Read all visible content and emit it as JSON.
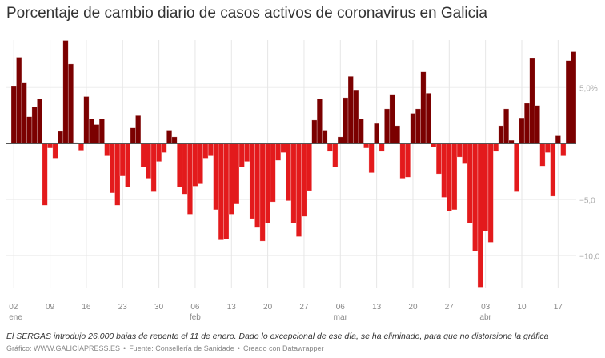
{
  "title": "Porcentaje de cambio diario de casos activos de coronavirus en Galicia",
  "note": "El SERGAS introdujo 26.000 bajas de repente el 11 de enero. Dado lo excepcional de ese día, se ha eliminado, para que no distorsione la gráfica",
  "source": {
    "credit": "Gráfico: WWW.GALICIAPRESS.ES",
    "separator": "•",
    "fuente": "Fuente: Consellería de Sanidade",
    "tool": "Creado con Datawrapper"
  },
  "chart_data": {
    "type": "bar",
    "title": "Porcentaje de cambio diario de casos activos de coronavirus en Galicia",
    "xlabel": "",
    "ylabel": "",
    "ylim": [
      -12.8,
      9.2
    ],
    "grid": true,
    "colors": {
      "positive": "#7b0000",
      "negative": "#e31a1c",
      "zero_line": "#555555"
    },
    "y_ticks": [
      {
        "value": 5,
        "label": "5,0%"
      },
      {
        "value": -5,
        "label": "−5,0"
      },
      {
        "value": -10,
        "label": "−10,0"
      }
    ],
    "x_ticks": [
      {
        "date": "01-02",
        "day": "02",
        "month": "ene"
      },
      {
        "date": "01-09",
        "day": "09"
      },
      {
        "date": "01-16",
        "day": "16"
      },
      {
        "date": "01-23",
        "day": "23"
      },
      {
        "date": "01-30",
        "day": "30"
      },
      {
        "date": "02-06",
        "day": "06",
        "month": "feb"
      },
      {
        "date": "02-13",
        "day": "13"
      },
      {
        "date": "02-20",
        "day": "20"
      },
      {
        "date": "02-27",
        "day": "27"
      },
      {
        "date": "03-06",
        "day": "06",
        "month": "mar"
      },
      {
        "date": "03-13",
        "day": "13"
      },
      {
        "date": "03-20",
        "day": "20"
      },
      {
        "date": "03-27",
        "day": "27"
      },
      {
        "date": "04-03",
        "day": "03",
        "month": "abr"
      },
      {
        "date": "04-10",
        "day": "10"
      },
      {
        "date": "04-17",
        "day": "17"
      }
    ],
    "x": [
      "01-02",
      "01-03",
      "01-04",
      "01-05",
      "01-06",
      "01-07",
      "01-08",
      "01-09",
      "01-10",
      "01-11",
      "01-12",
      "01-13",
      "01-14",
      "01-15",
      "01-16",
      "01-17",
      "01-18",
      "01-19",
      "01-20",
      "01-21",
      "01-22",
      "01-23",
      "01-24",
      "01-25",
      "01-26",
      "01-27",
      "01-28",
      "01-29",
      "01-30",
      "01-31",
      "02-01",
      "02-02",
      "02-03",
      "02-04",
      "02-05",
      "02-06",
      "02-07",
      "02-08",
      "02-09",
      "02-10",
      "02-11",
      "02-12",
      "02-13",
      "02-14",
      "02-15",
      "02-16",
      "02-17",
      "02-18",
      "02-19",
      "02-20",
      "02-21",
      "02-22",
      "02-23",
      "02-24",
      "02-25",
      "02-26",
      "02-27",
      "02-28",
      "03-01",
      "03-02",
      "03-03",
      "03-04",
      "03-05",
      "03-06",
      "03-07",
      "03-08",
      "03-09",
      "03-10",
      "03-11",
      "03-12",
      "03-13",
      "03-14",
      "03-15",
      "03-16",
      "03-17",
      "03-18",
      "03-19",
      "03-20",
      "03-21",
      "03-22",
      "03-23",
      "03-24",
      "03-25",
      "03-26",
      "03-27",
      "03-28",
      "03-29",
      "03-30",
      "03-31",
      "04-01",
      "04-02",
      "04-03",
      "04-04",
      "04-05",
      "04-06",
      "04-07",
      "04-08",
      "04-09",
      "04-10",
      "04-11",
      "04-12",
      "04-13",
      "04-14",
      "04-15",
      "04-16",
      "04-17",
      "04-18",
      "04-19",
      "04-20"
    ],
    "values": [
      5.1,
      7.7,
      5.4,
      2.4,
      3.3,
      4.0,
      -5.5,
      -0.4,
      -1.3,
      1.1,
      9.2,
      7.1,
      0.1,
      -0.6,
      4.2,
      2.2,
      1.7,
      2.2,
      -1.1,
      -4.4,
      -5.5,
      -2.9,
      -3.9,
      1.4,
      2.5,
      -2.1,
      -3.1,
      -4.3,
      -1.6,
      -0.8,
      1.2,
      0.6,
      -3.9,
      -4.5,
      -6.3,
      -3.8,
      -3.6,
      -1.3,
      -1.1,
      -5.9,
      -8.6,
      -8.5,
      -6.3,
      -5.4,
      -2.1,
      -1.6,
      -6.7,
      -7.5,
      -8.7,
      -7.1,
      -5.2,
      -1.5,
      -0.8,
      -5.1,
      -7.1,
      -8.3,
      -6.5,
      -4.2,
      2.1,
      4.0,
      1.2,
      -0.7,
      -2.1,
      0.6,
      4.1,
      6.0,
      4.8,
      2.2,
      -0.4,
      -2.6,
      1.8,
      -0.7,
      3.1,
      4.4,
      1.6,
      -3.1,
      -3.0,
      2.7,
      3.1,
      6.4,
      4.5,
      -0.3,
      -2.7,
      -4.8,
      -6.0,
      -5.9,
      -1.2,
      -1.8,
      -7.1,
      -9.6,
      -12.8,
      -7.8,
      -8.8,
      -0.7,
      1.6,
      3.1,
      0.3,
      -4.3,
      2.3,
      3.6,
      7.6,
      3.4,
      -2.0,
      -0.8,
      -4.7,
      0.7,
      -1.1,
      7.4,
      8.2
    ]
  }
}
